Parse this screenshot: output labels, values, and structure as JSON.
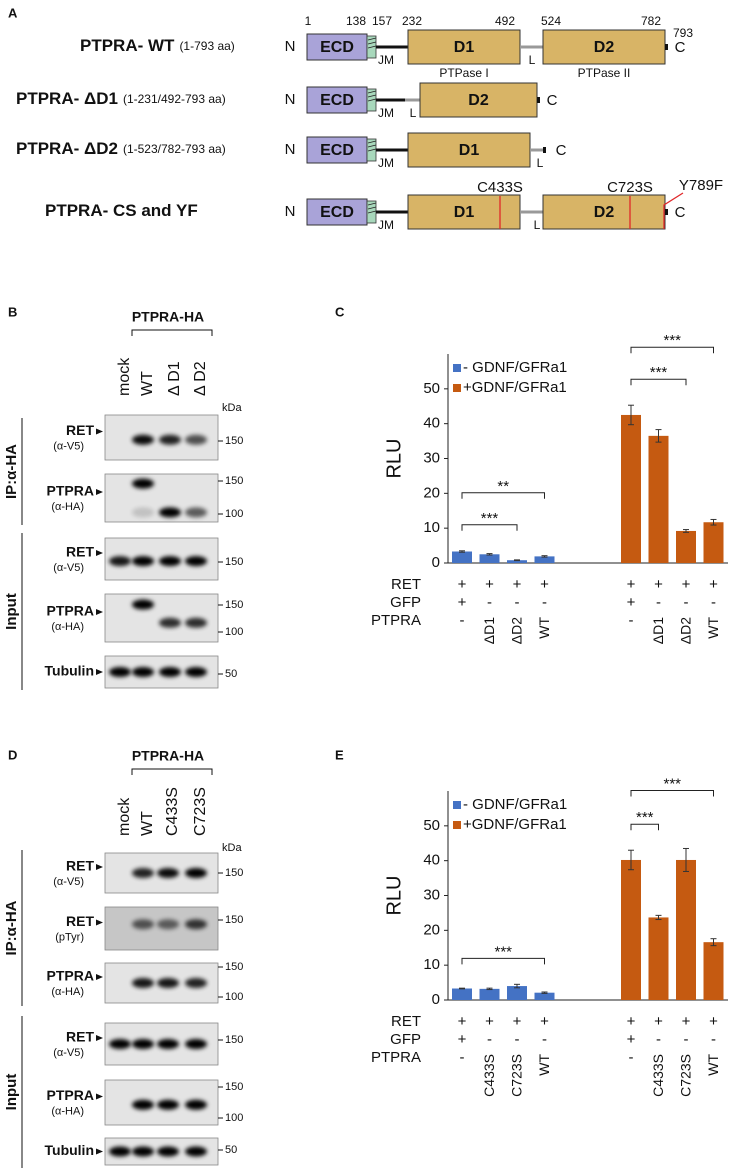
{
  "panel_labels": [
    "A",
    "B",
    "C",
    "D",
    "E"
  ],
  "panel_a": {
    "constructs": [
      {
        "name": "PTPRA- WT",
        "range": "(1-793 aa)"
      },
      {
        "name": "PTPRA- ΔD1",
        "range": "(1-231/492-793 aa)"
      },
      {
        "name": "PTPRA- ΔD2",
        "range": "(1-523/782-793 aa)"
      },
      {
        "name": "PTPRA- CS and YF"
      }
    ],
    "positions": [
      1,
      138,
      157,
      232,
      492,
      524,
      782,
      793
    ],
    "domains": {
      "n": "N",
      "c": "C",
      "ecd": "ECD",
      "jm": "JM",
      "d1": "D1",
      "d2": "D2",
      "linker": "L",
      "ptpase1": "PTPase I",
      "ptpase2": "PTPase II"
    },
    "mutations": [
      "C433S",
      "C723S",
      "Y789F"
    ]
  },
  "panel_b": {
    "construct": "PTPRA-HA",
    "lanes": [
      "mock",
      "WT",
      "Δ D1",
      "Δ D2"
    ],
    "kda": "kDa",
    "groups": [
      "IP:α-HA",
      "Input"
    ],
    "rows": [
      {
        "protein": "RET",
        "antibody": "(α-V5)",
        "markers": [
          150
        ]
      },
      {
        "protein": "PTPRA",
        "antibody": "(α-HA)",
        "markers": [
          150,
          100
        ]
      },
      {
        "protein": "RET",
        "antibody": "(α-V5)",
        "markers": [
          150
        ]
      },
      {
        "protein": "PTPRA",
        "antibody": "(α-HA)",
        "markers": [
          150,
          100
        ]
      },
      {
        "protein": "Tubulin",
        "markers": [
          50
        ]
      }
    ]
  },
  "panel_d": {
    "construct": "PTPRA-HA",
    "lanes": [
      "mock",
      "WT",
      "C433S",
      "C723S"
    ],
    "kda": "kDa",
    "groups": [
      "IP:α-HA",
      "Input"
    ],
    "rows": [
      {
        "protein": "RET",
        "antibody": "(α-V5)",
        "markers": [
          150
        ]
      },
      {
        "protein": "RET",
        "antibody": "(pTyr)",
        "markers": [
          150
        ]
      },
      {
        "protein": "PTPRA",
        "antibody": "(α-HA)",
        "markers": [
          150,
          100
        ]
      },
      {
        "protein": "RET",
        "antibody": "(α-V5)",
        "markers": [
          150
        ]
      },
      {
        "protein": "PTPRA",
        "antibody": "(α-HA)",
        "markers": [
          150,
          100
        ]
      },
      {
        "protein": "Tubulin",
        "markers": [
          50
        ]
      }
    ]
  },
  "chart_data": [
    {
      "type": "bar",
      "ylabel": "RLU",
      "ylim": [
        0,
        60
      ],
      "yticks": [
        0,
        10,
        20,
        30,
        40,
        50
      ],
      "series": [
        {
          "name": "- GDNF/GFRa1",
          "color": "#4472c4",
          "values": [
            3.3,
            2.5,
            0.8,
            1.9
          ],
          "errors": [
            0.2,
            0.2,
            0.1,
            0.2
          ]
        },
        {
          "name": "+GDNF/GFRa1",
          "color": "#c55a11",
          "values": [
            42.5,
            36.5,
            9.2,
            11.7
          ],
          "errors": [
            2.8,
            1.8,
            0.4,
            0.8
          ]
        }
      ],
      "rows": [
        {
          "label": "RET",
          "values": [
            "+",
            "+",
            "+",
            "+",
            "+",
            "+",
            "+",
            "+"
          ]
        },
        {
          "label": "GFP",
          "values": [
            "+",
            "-",
            "-",
            "-",
            "+",
            "-",
            "-",
            "-"
          ]
        },
        {
          "label": "PTPRA",
          "values": [
            "-",
            "ΔD1",
            "ΔD2",
            "WT",
            "-",
            "ΔD1",
            "ΔD2",
            "WT"
          ]
        }
      ],
      "significance": [
        {
          "series": 0,
          "from": 0,
          "to": 2,
          "label": "***"
        },
        {
          "series": 0,
          "from": 0,
          "to": 3,
          "label": "**"
        },
        {
          "series": 1,
          "from": 0,
          "to": 2,
          "label": "***"
        },
        {
          "series": 1,
          "from": 0,
          "to": 3,
          "label": "***"
        }
      ]
    },
    {
      "type": "bar",
      "ylabel": "RLU",
      "ylim": [
        0,
        60
      ],
      "yticks": [
        0,
        10,
        20,
        30,
        40,
        50
      ],
      "series": [
        {
          "name": "- GDNF/GFRa1",
          "color": "#4472c4",
          "values": [
            3.3,
            3.2,
            4.0,
            2.1
          ],
          "errors": [
            0.1,
            0.2,
            0.5,
            0.2
          ]
        },
        {
          "name": "+GDNF/GFRa1",
          "color": "#c55a11",
          "values": [
            40.2,
            23.7,
            40.2,
            16.6
          ],
          "errors": [
            2.8,
            0.6,
            3.3,
            1.0
          ]
        }
      ],
      "rows": [
        {
          "label": "RET",
          "values": [
            "+",
            "+",
            "+",
            "+",
            "+",
            "+",
            "+",
            "+"
          ]
        },
        {
          "label": "GFP",
          "values": [
            "+",
            "-",
            "-",
            "-",
            "+",
            "-",
            "-",
            "-"
          ]
        },
        {
          "label": "PTPRA",
          "values": [
            "-",
            "C433S",
            "C723S",
            "WT",
            "-",
            "C433S",
            "C723S",
            "WT"
          ]
        }
      ],
      "significance": [
        {
          "series": 0,
          "from": 0,
          "to": 3,
          "label": "***"
        },
        {
          "series": 1,
          "from": 0,
          "to": 1,
          "label": "***"
        },
        {
          "series": 1,
          "from": 0,
          "to": 3,
          "label": "***"
        }
      ]
    }
  ]
}
